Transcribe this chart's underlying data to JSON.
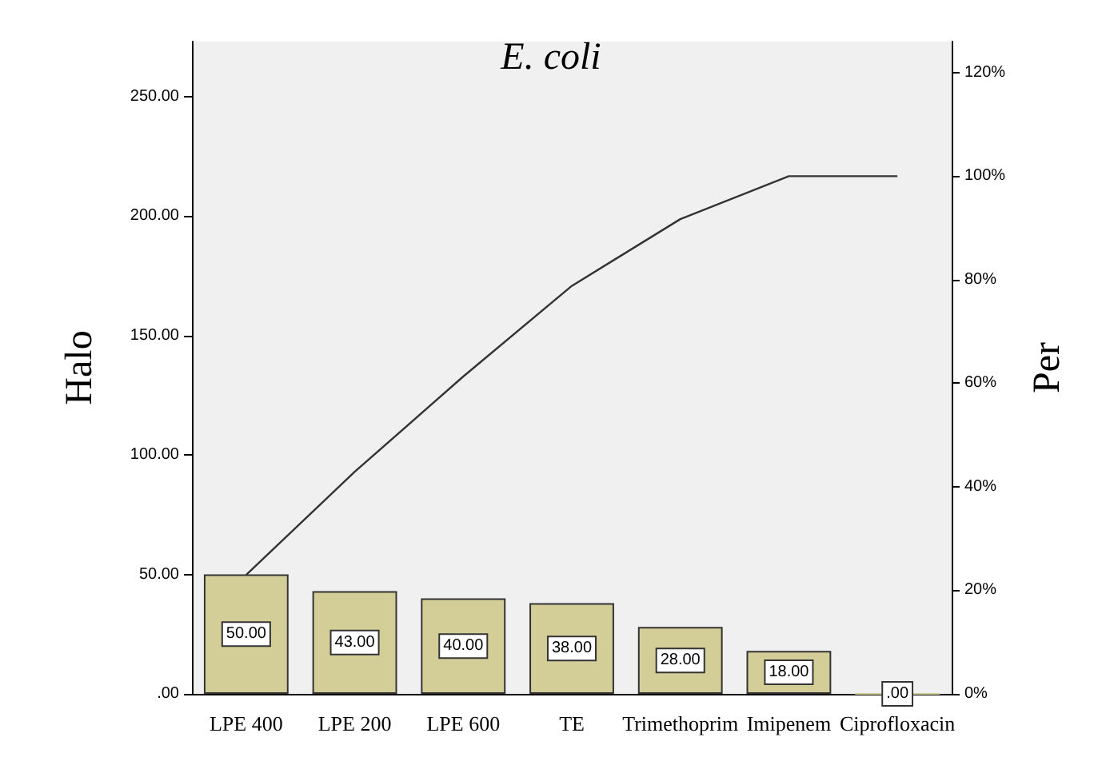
{
  "chart_data": {
    "type": "bar",
    "title": "E. coli",
    "ylabel": "Halo",
    "y2label": "Per",
    "categories": [
      "LPE 400",
      "LPE 200",
      "LPE 600",
      "TE",
      "Trimethoprim",
      "Imipenem",
      "Ciprofloxacin"
    ],
    "series": [
      {
        "color": "#d3ce97",
        "values": [
          50,
          43,
          40,
          38,
          28,
          18,
          0
        ],
        "value_labels": [
          "50.00",
          "43.00",
          "40.00",
          "38.00",
          "28.00",
          "18.00",
          ".00"
        ]
      },
      {
        "type": "line",
        "axis": "y2",
        "color": "#333333",
        "marker": "none",
        "values": [
          23.0,
          42.9,
          61.3,
          78.8,
          91.7,
          100,
          100
        ]
      }
    ],
    "ylim": [
      0,
      273
    ],
    "yticks": [
      {
        "value": 0,
        "label": ".00"
      },
      {
        "value": 50,
        "label": "50.00"
      },
      {
        "value": 100,
        "label": "100.00"
      },
      {
        "value": 150,
        "label": "150.00"
      },
      {
        "value": 200,
        "label": "200.00"
      },
      {
        "value": 250,
        "label": "250.00"
      }
    ],
    "y2lim": [
      0,
      126
    ],
    "y2ticks": [
      {
        "value": 0,
        "label": "0%"
      },
      {
        "value": 20,
        "label": "20%"
      },
      {
        "value": 40,
        "label": "40%"
      },
      {
        "value": 60,
        "label": "60%"
      },
      {
        "value": 80,
        "label": "80%"
      },
      {
        "value": 100,
        "label": "100%"
      },
      {
        "value": 120,
        "label": "120%"
      }
    ],
    "grid": false
  }
}
